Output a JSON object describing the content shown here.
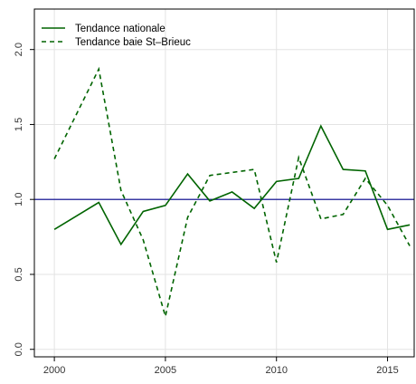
{
  "chart_data": {
    "type": "line",
    "title": "",
    "xlabel": "",
    "ylabel": "",
    "x": [
      2000,
      2001,
      2002,
      2003,
      2004,
      2005,
      2006,
      2007,
      2008,
      2009,
      2010,
      2011,
      2012,
      2013,
      2014,
      2015,
      2016
    ],
    "series": [
      {
        "name": "Tendance nationale",
        "style": "solid",
        "color": "#006400",
        "values": [
          0.8,
          0.89,
          0.98,
          0.7,
          0.92,
          0.96,
          1.17,
          0.99,
          1.05,
          0.94,
          1.12,
          1.14,
          1.49,
          1.2,
          1.19,
          0.8,
          0.83
        ]
      },
      {
        "name": "Tendance baie St–Brieuc",
        "style": "dashed",
        "color": "#006400",
        "values": [
          1.27,
          1.57,
          1.87,
          1.06,
          0.73,
          0.22,
          0.88,
          1.16,
          1.18,
          1.2,
          0.58,
          1.28,
          0.87,
          0.9,
          1.14,
          0.96,
          0.69
        ]
      }
    ],
    "reference_line": {
      "y": 1.0,
      "color": "#00008b"
    },
    "xlim": [
      1999.1,
      2016.2
    ],
    "ylim": [
      -0.05,
      2.27
    ],
    "x_ticks": [
      2000,
      2005,
      2010,
      2015
    ],
    "x_tick_labels": [
      "2000",
      "2005",
      "2010",
      "2015"
    ],
    "y_ticks": [
      0.0,
      0.5,
      1.0,
      1.5,
      2.0
    ],
    "y_tick_labels": [
      "0.0",
      "0.5",
      "1.0",
      "1.5",
      "2.0"
    ],
    "grid": true,
    "legend_position": "top-left"
  }
}
